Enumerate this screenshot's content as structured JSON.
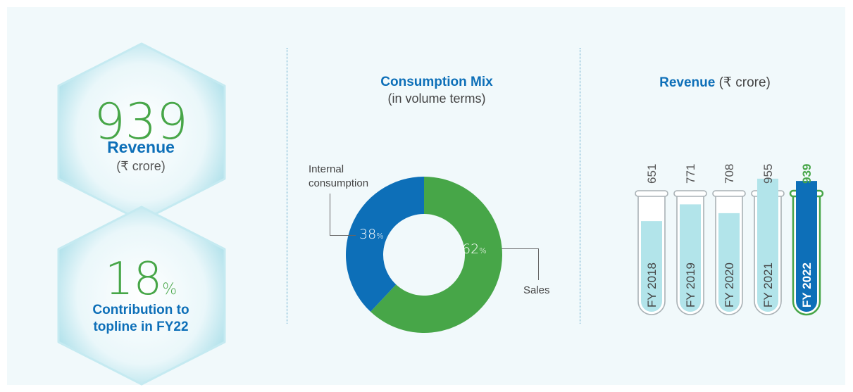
{
  "kpis": {
    "revenue": {
      "value": "939",
      "label": "Revenue",
      "unit": "(₹ crore)"
    },
    "contribution": {
      "value": "18",
      "suffix": "%",
      "label_line1": "Contribution to",
      "label_line2": "topline in FY22"
    }
  },
  "colors": {
    "green": "#47a648",
    "blue": "#0d6fb8",
    "light_bar": "#b2e4ea",
    "background": "#f1f9fb"
  },
  "chart_data": [
    {
      "type": "pie",
      "title": "Consumption Mix",
      "subtitle": "(in volume terms)",
      "slices": [
        {
          "label": "Sales",
          "value": 62,
          "display": "62",
          "suffix": "%",
          "color": "#47a648"
        },
        {
          "label_line1": "Internal",
          "label_line2": "consumption",
          "value": 38,
          "display": "38",
          "suffix": "%",
          "color": "#0d6fb8"
        }
      ]
    },
    {
      "type": "bar",
      "title": "Revenue",
      "title_unit": "(₹ crore)",
      "categories": [
        "FY 2018",
        "FY 2019",
        "FY 2020",
        "FY 2021",
        "FY 2022"
      ],
      "values": [
        651,
        771,
        708,
        955,
        939
      ],
      "highlight_index": 4
    }
  ]
}
